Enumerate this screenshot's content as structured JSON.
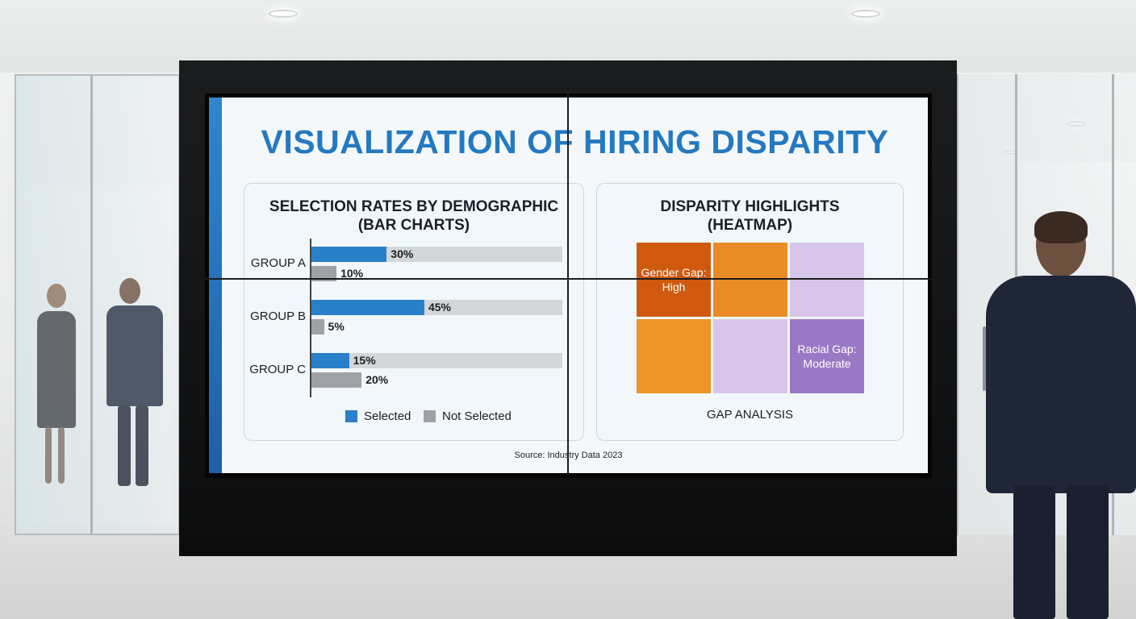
{
  "slide": {
    "title": "VISUALIZATION OF HIRING DISPARITY",
    "source": "Source: Industry Data 2023"
  },
  "chart_data": [
    {
      "type": "bar",
      "title": "SELECTION RATES BY DEMOGRAPHIC",
      "subtitle": "(BAR CHARTS)",
      "categories": [
        "GROUP A",
        "GROUP B",
        "GROUP C"
      ],
      "series": [
        {
          "name": "Selected",
          "values": [
            30,
            45,
            15
          ],
          "labels": [
            "30%",
            "45%",
            "15%"
          ]
        },
        {
          "name": "Not Selected",
          "values": [
            10,
            5,
            20
          ],
          "labels": [
            "10%",
            "5%",
            "20%"
          ]
        }
      ],
      "xlim": [
        0,
        100
      ],
      "orientation": "horizontal",
      "legend": "bottom"
    },
    {
      "type": "heatmap",
      "title": "DISPARITY HIGHLIGHTS",
      "subtitle": "(HEATMAP)",
      "xlabel": "GAP ANALYSIS",
      "cells": [
        {
          "label": "Gender Gap:\nHigh",
          "color": "#cf5a0f"
        },
        {
          "label": "",
          "color": "#ea8b25"
        },
        {
          "label": "",
          "color": "#d7c5e9"
        },
        {
          "label": "",
          "color": "#ee9428"
        },
        {
          "label": "",
          "color": "#d8c6ea"
        },
        {
          "label": "Racial Gap:\nModerate",
          "color": "#9b78c6"
        }
      ]
    }
  ],
  "colors": {
    "title": "#2479c0",
    "selected": "#2a7fc9",
    "not_selected": "#9ea2a6",
    "track": "#d4d7da"
  }
}
